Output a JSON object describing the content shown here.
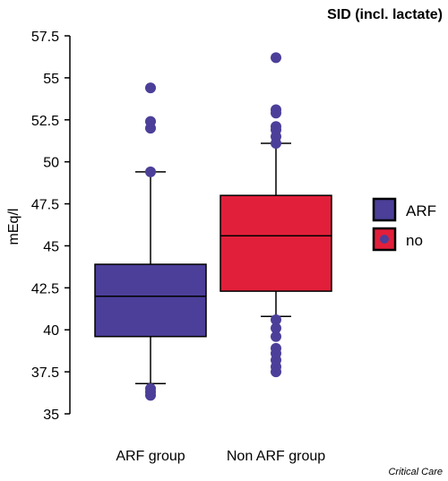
{
  "chart_data": {
    "type": "box",
    "title": "SID (incl. lactate)",
    "ylabel": "mEq/l",
    "xlabel": "",
    "ylim": [
      35,
      57.5
    ],
    "yticks": [
      "35",
      "37.5",
      "40",
      "42.5",
      "45",
      "47.5",
      "50",
      "52.5",
      "55",
      "57.5"
    ],
    "categories": [
      "ARF group",
      "Non ARF group"
    ],
    "series": [
      {
        "name": "ARF",
        "color": "#4b3f99",
        "whisker_low": 36.8,
        "q1": 39.6,
        "median": 42.0,
        "q3": 43.9,
        "whisker_high": 49.4,
        "outliers": [
          36.1,
          36.3,
          36.5,
          49.4,
          52.0,
          52.4,
          54.4
        ]
      },
      {
        "name": "no",
        "color": "#e21f3a",
        "whisker_low": 40.8,
        "q1": 42.3,
        "median": 45.6,
        "q3": 48.0,
        "whisker_high": 51.1,
        "outliers": [
          37.5,
          37.8,
          38.2,
          38.6,
          38.9,
          39.6,
          40.1,
          40.6,
          51.1,
          51.5,
          51.9,
          52.1,
          52.9,
          53.1,
          56.2
        ]
      }
    ],
    "legend_position": "right"
  },
  "footer": {
    "credit": "Critical Care"
  }
}
